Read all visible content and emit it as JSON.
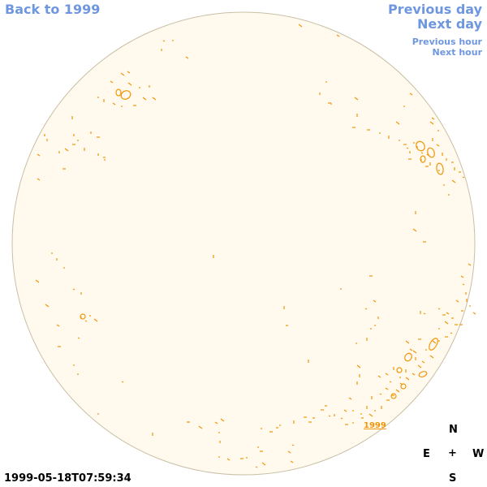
{
  "nav": {
    "back": "Back to 1999",
    "previous_day": "Previous day",
    "next_day": "Next day",
    "previous_hour": "Previous hour",
    "next_hour": "Next hour"
  },
  "compass": {
    "north": "N",
    "east": "E",
    "center": "+",
    "west": "W",
    "south": "S"
  },
  "timestamp": "1999-05-18T07:59:34",
  "year_label": "1999",
  "colors": {
    "link": "#6f97e0",
    "disk_fill": "#fffaed",
    "disk_outline": "#c8bfa6",
    "contour": "#f0960a"
  }
}
